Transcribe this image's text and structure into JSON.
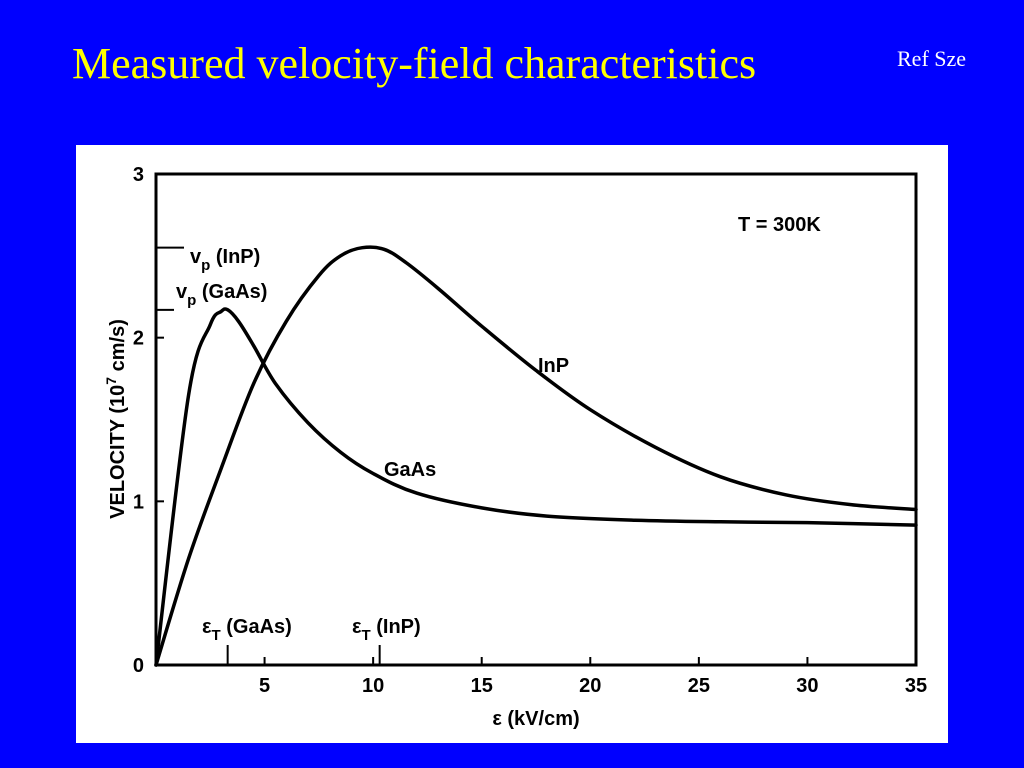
{
  "slide": {
    "title": "Measured velocity-field characteristics",
    "reference": "Ref Sze"
  },
  "chart_data": {
    "type": "line",
    "xlabel": "ε (kV/cm)",
    "ylabel_text": "VELOCITY (10",
    "ylabel_exp": "7",
    "ylabel_unit": " cm/s)",
    "xlim": [
      0,
      35
    ],
    "ylim": [
      0,
      3
    ],
    "x_ticks": [
      "5",
      "10",
      "15",
      "20",
      "25",
      "30",
      "35"
    ],
    "y_ticks": [
      "0",
      "1",
      "2",
      "3"
    ],
    "grid": false,
    "series": [
      {
        "name": "GaAs",
        "x": [
          0,
          1.5,
          2.5,
          3.0,
          3.3,
          3.8,
          4.5,
          5.5,
          7,
          8.5,
          10,
          12,
          15,
          18,
          22,
          26,
          30,
          35
        ],
        "y": [
          0,
          1.65,
          2.08,
          2.16,
          2.17,
          2.1,
          1.95,
          1.72,
          1.48,
          1.3,
          1.17,
          1.05,
          0.96,
          0.91,
          0.885,
          0.875,
          0.87,
          0.855
        ]
      },
      {
        "name": "InP",
        "x": [
          0,
          1.5,
          3,
          4.5,
          6,
          7.5,
          8.5,
          9.5,
          10.5,
          11.5,
          13,
          15,
          17.5,
          20,
          23,
          26,
          29,
          32,
          35
        ],
        "y": [
          0,
          0.65,
          1.2,
          1.72,
          2.1,
          2.38,
          2.5,
          2.55,
          2.54,
          2.46,
          2.3,
          2.07,
          1.8,
          1.56,
          1.33,
          1.15,
          1.04,
          0.98,
          0.95
        ]
      }
    ],
    "annotations": {
      "temperature": "T = 300K",
      "series_label_inp": "InP",
      "series_label_gaas": "GaAs",
      "vp_inp": {
        "main": "v",
        "sub": "p",
        "rest": " (InP)",
        "y": 2.55
      },
      "vp_gaas": {
        "main": "v",
        "sub": "p",
        "rest": " (GaAs)",
        "y": 2.17
      },
      "et_gaas": {
        "main": "ε",
        "sub": "T",
        "rest": " (GaAs)",
        "x": 3.3
      },
      "et_inp": {
        "main": "ε",
        "sub": "T",
        "rest": " (InP)",
        "x": 10.3
      }
    }
  }
}
